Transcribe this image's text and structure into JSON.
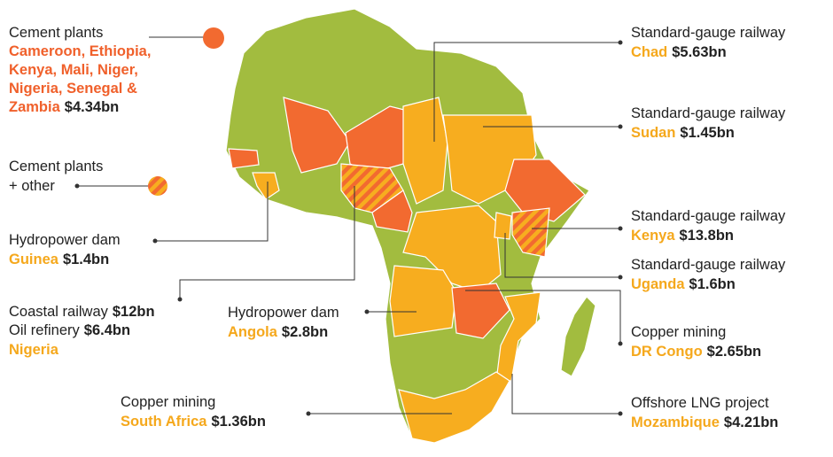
{
  "cement": {
    "project": "Cement plants",
    "countries": [
      "Cameroon, Ethiopia,",
      "Kenya, Mali, Niger,",
      "Nigeria, Senegal &",
      "Zambia"
    ],
    "amount": "$4.34bn"
  },
  "cement_other": {
    "project": [
      "Cement plants",
      "+ other"
    ]
  },
  "guinea": {
    "project": "Hydropower dam",
    "country": "Guinea",
    "amount": "$1.4bn"
  },
  "nigeria": {
    "projects": [
      {
        "project": "Coastal railway",
        "amount": "$12bn"
      },
      {
        "project": "Oil refinery",
        "amount": "$6.4bn"
      }
    ],
    "country": "Nigeria"
  },
  "angola": {
    "project": "Hydropower dam",
    "country": "Angola",
    "amount": "$2.8bn"
  },
  "south_africa": {
    "project": "Copper mining",
    "country": "South Africa",
    "amount": "$1.36bn"
  },
  "chad": {
    "project": "Standard-gauge railway",
    "country": "Chad",
    "amount": "$5.63bn"
  },
  "sudan": {
    "project": "Standard-gauge railway",
    "country": "Sudan",
    "amount": "$1.45bn"
  },
  "kenya": {
    "project": "Standard-gauge railway",
    "country": "Kenya",
    "amount": "$13.8bn"
  },
  "uganda": {
    "project": "Standard-gauge railway",
    "country": "Uganda",
    "amount": "$1.6bn"
  },
  "dr_congo": {
    "project": "Copper mining",
    "country": "DR Congo",
    "amount": "$2.65bn"
  },
  "mozambique": {
    "project": "Offshore LNG project",
    "country": "Mozambique",
    "amount": "$4.21bn"
  }
}
